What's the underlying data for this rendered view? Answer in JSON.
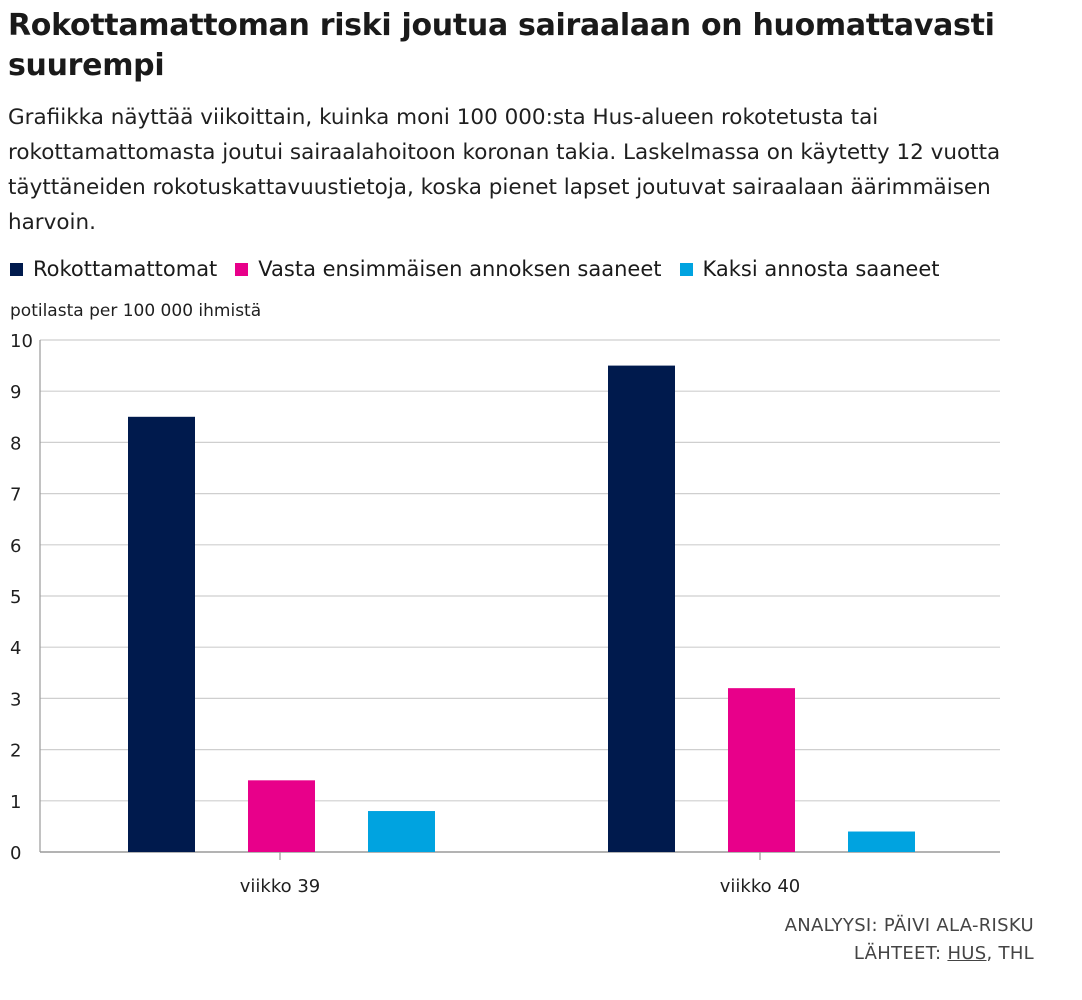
{
  "title": "Rokottamattoman riski joutua sairaalaan on huomattavasti suurempi",
  "subtitle": "Grafiikka näyttää viikoittain, kuinka moni 100 000:sta Hus-alueen rokotetusta tai rokottamattomasta joutui sairaalahoitoon koronan takia. Laskelmassa on käytetty 12 vuotta täyttäneiden rokotuskattavuustietoja, koska pienet lapset joutuvat sairaalaan äärimmäisen harvoin.",
  "legend": [
    {
      "label": "Rokottamattomat",
      "color": "#001a4d"
    },
    {
      "label": "Vasta ensimmäisen annoksen saaneet",
      "color": "#e8008a"
    },
    {
      "label": "Kaksi annosta saaneet",
      "color": "#00a3e0"
    }
  ],
  "chart_data": {
    "type": "bar",
    "title": "Rokottamattoman riski joutua sairaalaan on huomattavasti suurempi",
    "xlabel": "",
    "ylabel": "potilasta per 100 000 ihmistä",
    "categories": [
      "viikko 39",
      "viikko 40"
    ],
    "series": [
      {
        "name": "Rokottamattomat",
        "color": "#001a4d",
        "values": [
          8.5,
          9.5
        ]
      },
      {
        "name": "Vasta ensimmäisen annoksen saaneet",
        "color": "#e8008a",
        "values": [
          1.4,
          3.2
        ]
      },
      {
        "name": "Kaksi annosta saaneet",
        "color": "#00a3e0",
        "values": [
          0.8,
          0.4
        ]
      }
    ],
    "ylim": [
      0,
      10
    ],
    "yticks": [
      "0",
      "1",
      "2",
      "3",
      "4",
      "5",
      "6",
      "7",
      "8",
      "9",
      "10"
    ],
    "grid": true,
    "legend_position": "top-left"
  },
  "footer": {
    "analysis": "ANALYYSI: PÄIVI ALA-RISKU",
    "sources_prefix": "LÄHTEET: ",
    "sources_link": "HUS",
    "sources_rest": ", THL"
  }
}
